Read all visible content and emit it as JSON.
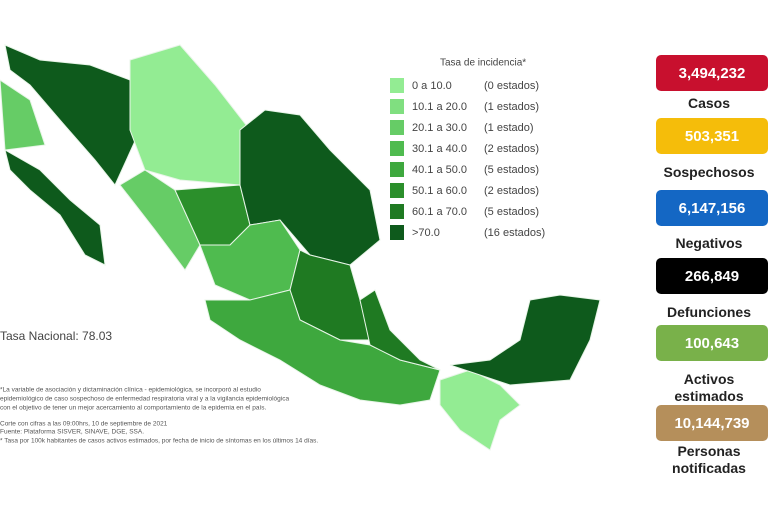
{
  "map": {
    "legend_title": "Tasa de incidencia*",
    "legend": [
      {
        "range": "0 a 10.0",
        "count": "(0 estados)",
        "color": "#93ec93"
      },
      {
        "range": "10.1 a 20.0",
        "count": "(1 estados)",
        "color": "#80df80"
      },
      {
        "range": "20.1 a 30.0",
        "count": "(1 estado)",
        "color": "#66cc66"
      },
      {
        "range": "30.1 a 40.0",
        "count": "(2 estados)",
        "color": "#4fbb4f"
      },
      {
        "range": "40.1 a 50.0",
        "count": "(5 estados)",
        "color": "#3ea83e"
      },
      {
        "range": "50.1 a 60.0",
        "count": "(2 estados)",
        "color": "#2b8f2b"
      },
      {
        "range": "60.1 a 70.0",
        "count": "(5 estados)",
        "color": "#1f7a22"
      },
      {
        "range": ">70.0",
        "count": "(16 estados)",
        "color": "#0e5a1c"
      }
    ],
    "national_rate": "Tasa Nacional: 78.03",
    "notes": [
      "*La variable de asociación y dictaminación clínica - epidemiológica, se incorporó al estudio",
      "epidemiológico de caso sospechoso de enfermedad respiratoria viral y a la vigilancia epidemiológica",
      "con el objetivo de tener un mejor acercamiento al comportamiento de la epidemia en el país.",
      "Corte con cifras a las 09:00hrs, 10 de septiembre de 2021",
      "Fuente: Plataforma SISVER, SINAVE, DGE, SSA.",
      "* Tasa por 100k habitantes de casos activos estimados, por fecha de inicio de síntomas en los últimos 14 días."
    ]
  },
  "stats": [
    {
      "value": "3,494,232",
      "label": "Casos",
      "color": "#c8102e"
    },
    {
      "value": "503,351",
      "label": "Sospechosos",
      "color": "#f5bd0a"
    },
    {
      "value": "6,147,156",
      "label": "Negativos",
      "color": "#1467c4"
    },
    {
      "value": "266,849",
      "label": "Defunciones",
      "color": "#000000"
    },
    {
      "value": "100,643",
      "label": "Activos estimados",
      "color": "#79b14a"
    },
    {
      "value": "10,144,739",
      "label": "Personas notificadas",
      "color": "#b58f5b"
    }
  ]
}
